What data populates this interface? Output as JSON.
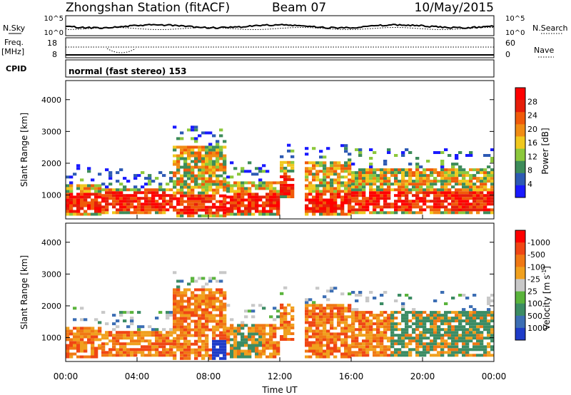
{
  "header": {
    "title": "Zhongshan Station (fitACF)",
    "beam": "Beam 07",
    "date": "10/May/2015"
  },
  "top_panels": {
    "nsky_label": "N.Sky",
    "nsky_ticks": [
      "10^5",
      "10^0"
    ],
    "nsearch_label": "N.Search",
    "nsearch_ticks": [
      "10^5",
      "10^0"
    ],
    "freq_label": "Freq.",
    "freq_unit": "[MHz]",
    "freq_ticks": [
      "18",
      "8"
    ],
    "nave_label": "Nave",
    "nave_ticks": [
      "60",
      "0"
    ],
    "cpid_label": "CPID",
    "cpid_text": "normal (fast stereo) 153"
  },
  "chart_data": [
    {
      "type": "heatmap",
      "name": "power",
      "ylabel": "Slant Range [km]",
      "yticks": [
        "1000",
        "2000",
        "3000",
        "4000"
      ],
      "ylim": [
        250,
        4600
      ],
      "xlim": [
        0,
        24
      ],
      "colorbar_label": "Power [dB]",
      "colorbar_ticks": [
        "4",
        "8",
        "12",
        "16",
        "20",
        "24",
        "28"
      ],
      "colors": [
        "#1a1aff",
        "#2d5ab4",
        "#3d8c5a",
        "#8cc83c",
        "#f0c81e",
        "#f08c14",
        "#f05a0a",
        "#e61e0a",
        "#ff0000"
      ]
    },
    {
      "type": "heatmap",
      "name": "velocity",
      "ylabel": "Slant Range [km]",
      "yticks": [
        "1000",
        "2000",
        "3000",
        "4000"
      ],
      "ylim": [
        250,
        4600
      ],
      "xlim": [
        0,
        24
      ],
      "xticks": [
        "00:00",
        "04:00",
        "08:00",
        "12:00",
        "16:00",
        "20:00",
        "00:00"
      ],
      "xlabel": "Time UT",
      "colorbar_label": "Velocity [m s",
      "colorbar_sup": "-1",
      "colorbar_ticks": [
        "1000",
        "500",
        "100",
        "25",
        "-25",
        "-100",
        "-500",
        "-1000"
      ],
      "colors": [
        "#1e3cc8",
        "#3c6eb4",
        "#3c8c64",
        "#5ab43c",
        "#c8c8c8",
        "#f0a01e",
        "#f07814",
        "#f04614",
        "#ff0000"
      ]
    }
  ]
}
